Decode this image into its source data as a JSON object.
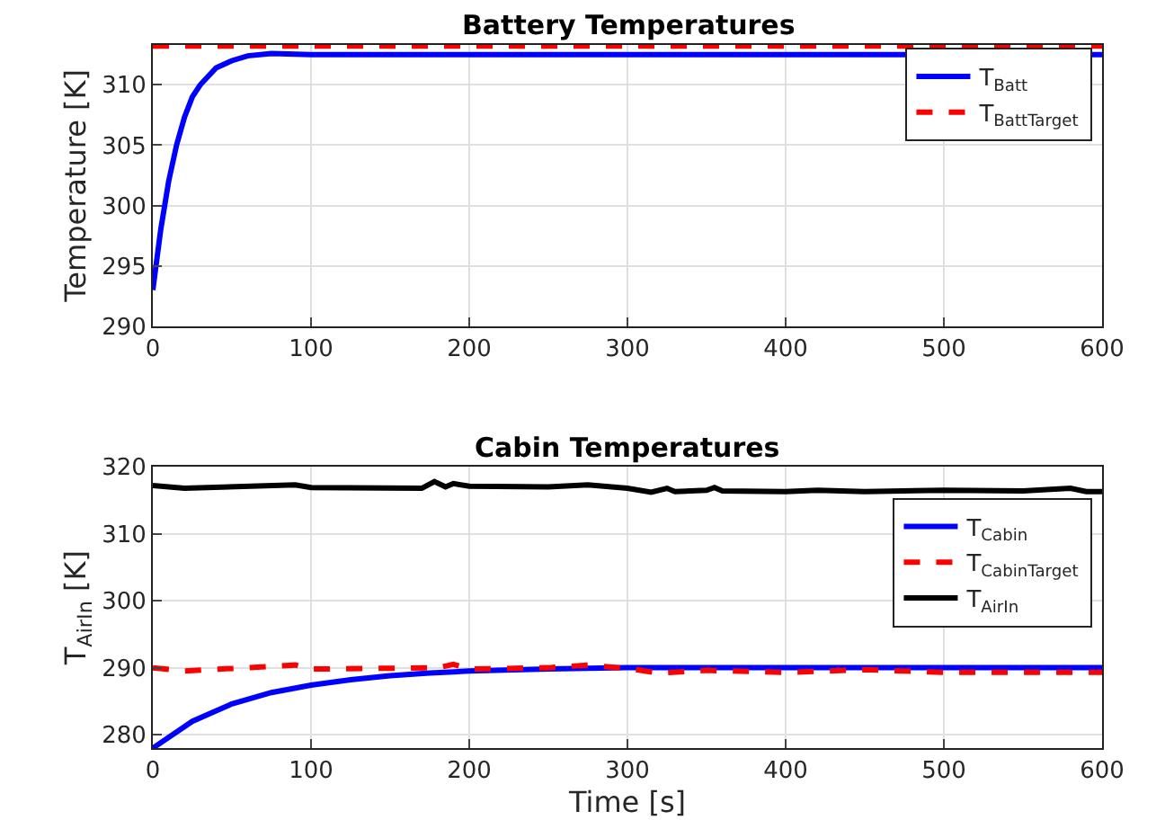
{
  "chart_data": [
    {
      "type": "line",
      "title": "Battery Temperatures",
      "ylabel": "Temperature [K]",
      "xlim": [
        0,
        600
      ],
      "xticks": [
        0,
        100,
        200,
        300,
        400,
        500,
        600
      ],
      "ylim": [
        290,
        313.3
      ],
      "yticks": [
        290,
        295,
        300,
        305,
        310
      ],
      "grid": true,
      "legend": "top right",
      "series": [
        {
          "name": "T$_{Batt}$",
          "color": "#0000ff",
          "line_style": "solid",
          "x": [
            0,
            5,
            10,
            15,
            20,
            25,
            30,
            40,
            50,
            60,
            75,
            100,
            600
          ],
          "values": [
            293,
            298,
            302,
            305,
            307.3,
            309,
            310,
            311.4,
            312,
            312.4,
            312.6,
            312.5,
            312.5
          ]
        },
        {
          "name": "T$_{Batt}$$_{Target}$",
          "color": "#ff0000",
          "line_style": "dashed",
          "x": [
            0,
            600
          ],
          "values": [
            313.2,
            313.2
          ]
        }
      ]
    },
    {
      "type": "line",
      "title": "Cabin Temperatures",
      "xlabel": "Time [s]",
      "ylabel": "T$_{Air}$$_{In}$ [K]",
      "xlim": [
        0,
        600
      ],
      "xticks": [
        0,
        100,
        200,
        300,
        400,
        500,
        600
      ],
      "ylim": [
        278,
        320
      ],
      "yticks": [
        280,
        290,
        300,
        310,
        320
      ],
      "grid": true,
      "legend": "top right",
      "series": [
        {
          "name": "T$_{Cabin}$",
          "color": "#0000ff",
          "line_style": "solid",
          "x": [
            0,
            25,
            50,
            75,
            100,
            125,
            150,
            175,
            200,
            250,
            300,
            600
          ],
          "values": [
            278,
            282,
            284.6,
            286.3,
            287.4,
            288.2,
            288.8,
            289.2,
            289.5,
            289.8,
            290,
            290
          ]
        },
        {
          "name": "T$_{Cabin}$$_{Target}$",
          "color": "#ff0000",
          "line_style": "dashed",
          "x": [
            0,
            20,
            90,
            100,
            180,
            190,
            200,
            250,
            275,
            300,
            320,
            350,
            400,
            450,
            500,
            600
          ],
          "values": [
            290,
            289.5,
            290.4,
            289.8,
            290,
            290.5,
            289.8,
            290,
            290.4,
            289.9,
            289.2,
            289.6,
            289.3,
            289.7,
            289.3,
            289.3
          ]
        },
        {
          "name": "T$_{Air}$$_{In}$",
          "color": "#000000",
          "line_style": "solid",
          "x": [
            0,
            20,
            90,
            100,
            170,
            178,
            185,
            190,
            200,
            250,
            275,
            300,
            315,
            325,
            330,
            350,
            355,
            360,
            400,
            420,
            450,
            500,
            550,
            580,
            590,
            600
          ],
          "values": [
            317.2,
            316.8,
            317.3,
            316.9,
            316.8,
            317.8,
            317,
            317.5,
            317.1,
            317,
            317.3,
            316.8,
            316.2,
            316.8,
            316.3,
            316.5,
            316.9,
            316.4,
            316.3,
            316.5,
            316.3,
            316.5,
            316.4,
            316.8,
            316.3,
            316.3
          ]
        }
      ]
    }
  ]
}
